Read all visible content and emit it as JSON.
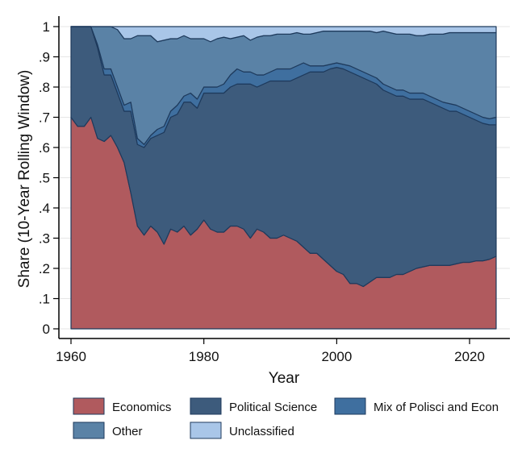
{
  "chart_data": {
    "type": "area",
    "stacked": true,
    "xlabel": "Year",
    "ylabel": "Share (10-Year Rolling Window)",
    "xlim": [
      1960,
      2024
    ],
    "ylim": [
      0,
      1
    ],
    "xticks": [
      1960,
      1980,
      2000,
      2020
    ],
    "yticks": [
      {
        "value": 0,
        "label": "0"
      },
      {
        "value": 0.1,
        "label": ".1"
      },
      {
        "value": 0.2,
        "label": ".2"
      },
      {
        "value": 0.3,
        "label": ".3"
      },
      {
        "value": 0.4,
        "label": ".4"
      },
      {
        "value": 0.5,
        "label": ".5"
      },
      {
        "value": 0.6,
        "label": ".6"
      },
      {
        "value": 0.7,
        "label": ".7"
      },
      {
        "value": 0.8,
        "label": ".8"
      },
      {
        "value": 0.9,
        "label": ".9"
      },
      {
        "value": 1,
        "label": "1"
      }
    ],
    "grid": true,
    "legend_position": "bottom",
    "x": [
      1960,
      1961,
      1962,
      1963,
      1964,
      1965,
      1966,
      1967,
      1968,
      1969,
      1970,
      1971,
      1972,
      1973,
      1974,
      1975,
      1976,
      1977,
      1978,
      1979,
      1980,
      1981,
      1982,
      1983,
      1984,
      1985,
      1986,
      1987,
      1988,
      1989,
      1990,
      1991,
      1992,
      1993,
      1994,
      1995,
      1996,
      1997,
      1998,
      1999,
      2000,
      2001,
      2002,
      2003,
      2004,
      2005,
      2006,
      2007,
      2008,
      2009,
      2010,
      2011,
      2012,
      2013,
      2014,
      2015,
      2016,
      2017,
      2018,
      2019,
      2020,
      2021,
      2022,
      2023,
      2024
    ],
    "series": [
      {
        "name": "Economics",
        "color": "#b05a5e",
        "cumulative_top": [
          0.7,
          0.67,
          0.67,
          0.7,
          0.63,
          0.62,
          0.64,
          0.6,
          0.55,
          0.45,
          0.34,
          0.31,
          0.34,
          0.32,
          0.28,
          0.33,
          0.32,
          0.34,
          0.31,
          0.33,
          0.36,
          0.33,
          0.32,
          0.32,
          0.34,
          0.34,
          0.33,
          0.3,
          0.33,
          0.32,
          0.3,
          0.3,
          0.31,
          0.3,
          0.29,
          0.27,
          0.25,
          0.25,
          0.23,
          0.21,
          0.19,
          0.18,
          0.15,
          0.15,
          0.14,
          0.155,
          0.17,
          0.17,
          0.17,
          0.18,
          0.18,
          0.19,
          0.2,
          0.205,
          0.21,
          0.21,
          0.21,
          0.21,
          0.215,
          0.22,
          0.22,
          0.225,
          0.225,
          0.23,
          0.24
        ]
      },
      {
        "name": "Political Science",
        "color": "#3d5b7c",
        "cumulative_top": [
          1.0,
          1.0,
          1.0,
          1.0,
          0.93,
          0.84,
          0.84,
          0.78,
          0.72,
          0.72,
          0.61,
          0.6,
          0.63,
          0.64,
          0.65,
          0.7,
          0.71,
          0.75,
          0.75,
          0.73,
          0.78,
          0.78,
          0.78,
          0.78,
          0.8,
          0.81,
          0.81,
          0.81,
          0.8,
          0.81,
          0.82,
          0.82,
          0.82,
          0.82,
          0.83,
          0.84,
          0.85,
          0.85,
          0.85,
          0.86,
          0.865,
          0.86,
          0.85,
          0.84,
          0.83,
          0.82,
          0.81,
          0.79,
          0.78,
          0.77,
          0.77,
          0.76,
          0.76,
          0.76,
          0.75,
          0.74,
          0.73,
          0.72,
          0.72,
          0.71,
          0.7,
          0.69,
          0.68,
          0.675,
          0.675
        ]
      },
      {
        "name": "Mix of Polisci and Econ",
        "color": "#3f6f9f",
        "cumulative_top": [
          1.0,
          1.0,
          1.0,
          1.0,
          0.94,
          0.86,
          0.86,
          0.8,
          0.74,
          0.75,
          0.63,
          0.61,
          0.64,
          0.66,
          0.67,
          0.72,
          0.74,
          0.77,
          0.78,
          0.76,
          0.8,
          0.8,
          0.8,
          0.81,
          0.84,
          0.86,
          0.85,
          0.85,
          0.84,
          0.84,
          0.85,
          0.86,
          0.86,
          0.86,
          0.87,
          0.88,
          0.87,
          0.87,
          0.87,
          0.875,
          0.88,
          0.875,
          0.87,
          0.86,
          0.85,
          0.84,
          0.83,
          0.81,
          0.8,
          0.79,
          0.79,
          0.78,
          0.78,
          0.78,
          0.77,
          0.76,
          0.75,
          0.745,
          0.74,
          0.73,
          0.72,
          0.71,
          0.7,
          0.695,
          0.7
        ]
      },
      {
        "name": "Other",
        "color": "#5a82a6",
        "cumulative_top": [
          1.0,
          1.0,
          1.0,
          1.0,
          1.0,
          1.0,
          1.0,
          0.99,
          0.96,
          0.96,
          0.97,
          0.97,
          0.97,
          0.95,
          0.955,
          0.96,
          0.96,
          0.97,
          0.96,
          0.96,
          0.96,
          0.95,
          0.96,
          0.965,
          0.96,
          0.965,
          0.97,
          0.955,
          0.965,
          0.97,
          0.97,
          0.975,
          0.975,
          0.975,
          0.98,
          0.975,
          0.975,
          0.98,
          0.985,
          0.985,
          0.985,
          0.985,
          0.985,
          0.985,
          0.985,
          0.985,
          0.98,
          0.985,
          0.98,
          0.975,
          0.975,
          0.975,
          0.97,
          0.97,
          0.975,
          0.975,
          0.975,
          0.98,
          0.98,
          0.98,
          0.98,
          0.98,
          0.98,
          0.98,
          0.98
        ]
      },
      {
        "name": "Unclassified",
        "color": "#a9c6e8",
        "cumulative_top": [
          1,
          1,
          1,
          1,
          1,
          1,
          1,
          1,
          1,
          1,
          1,
          1,
          1,
          1,
          1,
          1,
          1,
          1,
          1,
          1,
          1,
          1,
          1,
          1,
          1,
          1,
          1,
          1,
          1,
          1,
          1,
          1,
          1,
          1,
          1,
          1,
          1,
          1,
          1,
          1,
          1,
          1,
          1,
          1,
          1,
          1,
          1,
          1,
          1,
          1,
          1,
          1,
          1,
          1,
          1,
          1,
          1,
          1,
          1,
          1,
          1,
          1,
          1,
          1,
          1
        ]
      }
    ]
  }
}
